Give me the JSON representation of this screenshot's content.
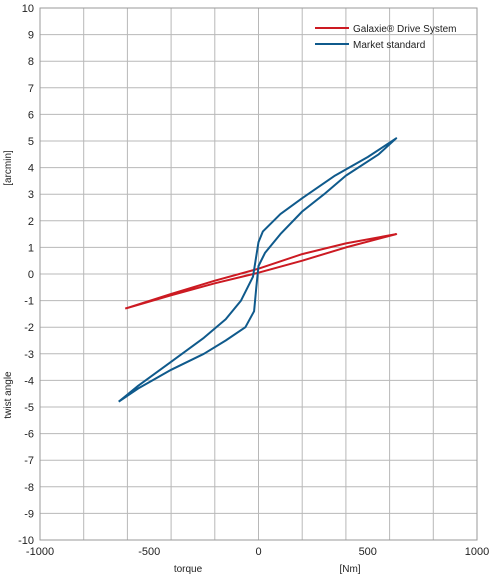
{
  "chart_data": {
    "type": "line",
    "title": "",
    "xlim": [
      -1000,
      1000
    ],
    "ylim": [
      -10,
      10
    ],
    "xticks": [
      -1000,
      -800,
      -600,
      -400,
      -200,
      0,
      200,
      400,
      600,
      800,
      1000
    ],
    "xtick_labels": [
      "-1000",
      "-500",
      "0",
      "500",
      "1000"
    ],
    "xtick_label_values": [
      -1000,
      -500,
      0,
      500,
      1000
    ],
    "yticks": [
      -10,
      -9,
      -8,
      -7,
      -6,
      -5,
      -4,
      -3,
      -2,
      -1,
      0,
      1,
      2,
      3,
      4,
      5,
      6,
      7,
      8,
      9,
      10
    ],
    "xlabel_parts": [
      "torque",
      "[Nm]"
    ],
    "ylabel_parts": [
      "twist angle",
      "[arcmin]"
    ],
    "grid": true,
    "legend_position": "top-right",
    "series": [
      {
        "name": "Galaxie® Drive System",
        "color": "#cc1a22",
        "points": [
          [
            -610,
            -1.3
          ],
          [
            -400,
            -0.8
          ],
          [
            -200,
            -0.35
          ],
          [
            0,
            0.05
          ],
          [
            200,
            0.5
          ],
          [
            400,
            1.0
          ],
          [
            630,
            1.5
          ],
          [
            400,
            1.15
          ],
          [
            200,
            0.75
          ],
          [
            0,
            0.2
          ],
          [
            -200,
            -0.25
          ],
          [
            -400,
            -0.75
          ],
          [
            -610,
            -1.3
          ]
        ]
      },
      {
        "name": "Market standard",
        "color": "#0f5a8c",
        "points": [
          [
            -640,
            -4.8
          ],
          [
            -550,
            -4.2
          ],
          [
            -400,
            -3.3
          ],
          [
            -250,
            -2.4
          ],
          [
            -150,
            -1.7
          ],
          [
            -80,
            -1.0
          ],
          [
            -25,
            -0.1
          ],
          [
            0,
            1.2
          ],
          [
            20,
            1.6
          ],
          [
            100,
            2.25
          ],
          [
            200,
            2.85
          ],
          [
            350,
            3.7
          ],
          [
            500,
            4.4
          ],
          [
            630,
            5.1
          ],
          [
            550,
            4.5
          ],
          [
            400,
            3.7
          ],
          [
            300,
            3.0
          ],
          [
            200,
            2.35
          ],
          [
            100,
            1.5
          ],
          [
            30,
            0.8
          ],
          [
            0,
            0.3
          ],
          [
            -10,
            -0.5
          ],
          [
            -20,
            -1.4
          ],
          [
            -60,
            -2.0
          ],
          [
            -150,
            -2.5
          ],
          [
            -250,
            -3.0
          ],
          [
            -400,
            -3.6
          ],
          [
            -550,
            -4.3
          ],
          [
            -640,
            -4.8
          ]
        ]
      }
    ]
  }
}
